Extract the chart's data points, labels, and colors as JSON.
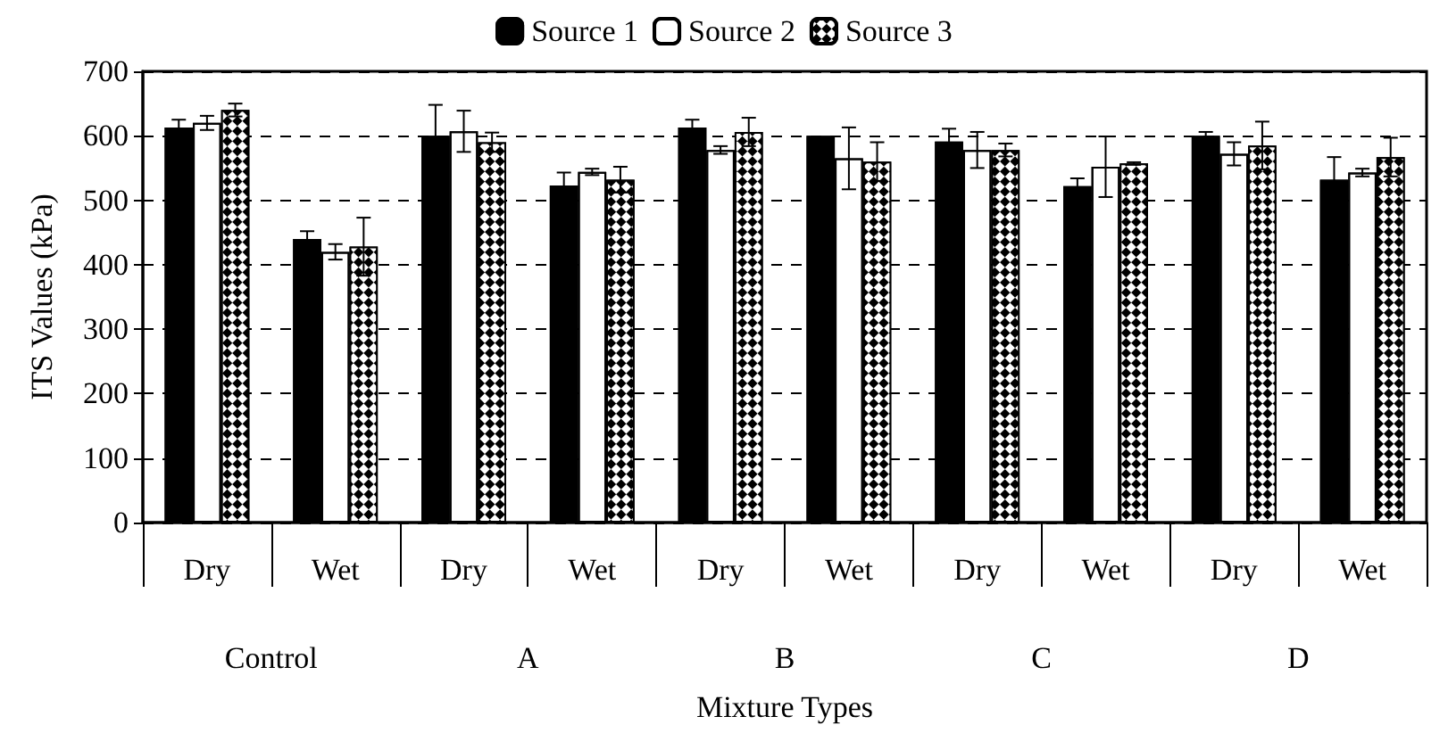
{
  "chart_data": {
    "type": "bar",
    "xlabel": "Mixture Types",
    "ylabel": "ITS Values (kPa)",
    "categories": [
      "Dry",
      "Wet",
      "Dry",
      "Wet",
      "Dry",
      "Wet",
      "Dry",
      "Wet",
      "Dry",
      "Wet"
    ],
    "annotations": [
      "Control",
      "A",
      "B",
      "C",
      "D"
    ],
    "series": [
      {
        "name": "Source 1",
        "color": "#000000",
        "values": [
          613,
          440,
          600,
          523,
          613,
          600,
          591,
          522,
          600,
          532
        ],
        "errors": [
          12,
          12,
          48,
          20,
          12,
          null,
          20,
          12,
          6,
          35
        ]
      },
      {
        "name": "Source 2",
        "color": "#ffffff",
        "values": [
          620,
          420,
          607,
          544,
          578,
          565,
          578,
          552,
          572,
          543
        ],
        "errors": [
          11,
          12,
          32,
          5,
          6,
          48,
          28,
          47,
          18,
          6
        ]
      },
      {
        "name": "Source 3",
        "color": "#000000",
        "values": [
          640,
          428,
          590,
          532,
          606,
          560,
          578,
          557,
          585,
          567
        ],
        "errors": [
          10,
          45,
          15,
          20,
          22,
          30,
          10,
          2,
          37,
          30
        ]
      }
    ],
    "ylim": [
      0,
      700
    ],
    "yticks": [
      0,
      100,
      200,
      300,
      400,
      500,
      600,
      700
    ],
    "grid": "y",
    "legend": "top"
  }
}
